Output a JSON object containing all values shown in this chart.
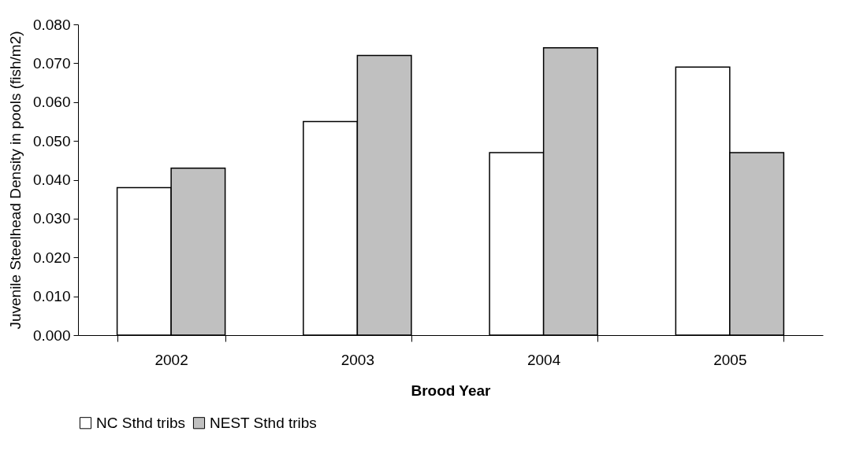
{
  "chart_data": {
    "type": "bar",
    "xlabel": "Brood Year",
    "ylabel": "Juvenile Steelhead Density in pools (fish/m2)",
    "categories": [
      "2002",
      "2003",
      "2004",
      "2005"
    ],
    "series": [
      {
        "name": "NC Sthd tribs",
        "color": "#ffffff",
        "values": [
          0.038,
          0.055,
          0.047,
          0.069
        ]
      },
      {
        "name": "NEST Sthd tribs",
        "color": "#c0c0c0",
        "values": [
          0.043,
          0.072,
          0.074,
          0.047
        ]
      }
    ],
    "ylim": [
      0,
      0.08
    ],
    "yticks": [
      {
        "value": 0,
        "label": "0.000"
      },
      {
        "value": 0.01,
        "label": "0.010"
      },
      {
        "value": 0.02,
        "label": "0.020"
      },
      {
        "value": 0.03,
        "label": "0.030"
      },
      {
        "value": 0.04,
        "label": "0.040"
      },
      {
        "value": 0.05,
        "label": "0.050"
      },
      {
        "value": 0.06,
        "label": "0.060"
      },
      {
        "value": 0.07,
        "label": "0.070"
      },
      {
        "value": 0.08,
        "label": "0.080"
      }
    ],
    "grid": false,
    "legend": "bottom"
  }
}
